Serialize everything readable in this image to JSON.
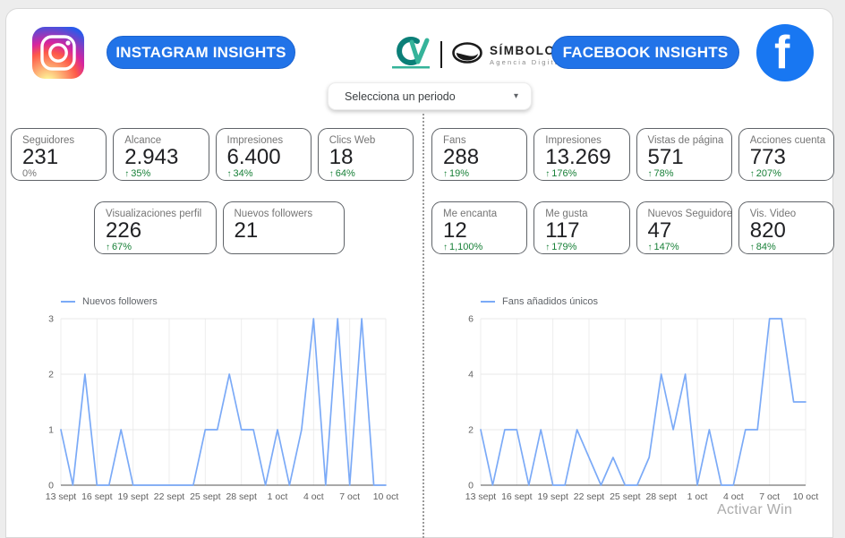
{
  "header": {
    "instagram_button": "INSTAGRAM INSIGHTS",
    "facebook_button": "FACEBOOK INSIGHTS",
    "simbolo_name": "SÍMBOLO",
    "simbolo_sub": "Agencia Digital"
  },
  "filter": {
    "label": "Selecciona un periodo"
  },
  "ui": {
    "up_arrow": "↑",
    "dropdown_caret": "▾"
  },
  "colors": {
    "accent_blue": "#2173e8",
    "facebook_blue": "#1877f2",
    "positive_green": "#188038",
    "chart_line": "#7baaf7"
  },
  "instagram": {
    "cards_row1": [
      {
        "label": "Seguidores",
        "value": "231",
        "delta": "0%",
        "positive": false
      },
      {
        "label": "Alcance",
        "value": "2.943",
        "delta": "35%",
        "positive": true
      },
      {
        "label": "Impresiones",
        "value": "6.400",
        "delta": "34%",
        "positive": true
      },
      {
        "label": "Clics Web",
        "value": "18",
        "delta": "64%",
        "positive": true
      }
    ],
    "cards_row2": [
      {
        "label": "Visualizaciones perfil",
        "value": "226",
        "delta": "67%",
        "positive": true
      },
      {
        "label": "Nuevos followers",
        "value": "21",
        "delta": "",
        "positive": false
      }
    ]
  },
  "facebook": {
    "cards_row1": [
      {
        "label": "Fans",
        "value": "288",
        "delta": "19%",
        "positive": true
      },
      {
        "label": "Impresiones",
        "value": "13.269",
        "delta": "176%",
        "positive": true
      },
      {
        "label": "Vistas de página",
        "value": "571",
        "delta": "78%",
        "positive": true
      },
      {
        "label": "Acciones cuenta",
        "value": "773",
        "delta": "207%",
        "positive": true
      }
    ],
    "cards_row2": [
      {
        "label": "Me encanta",
        "value": "12",
        "delta": "1,100%",
        "positive": true
      },
      {
        "label": "Me gusta",
        "value": "117",
        "delta": "179%",
        "positive": true
      },
      {
        "label": "Nuevos Seguidores",
        "value": "47",
        "delta": "147%",
        "positive": true
      },
      {
        "label": "Vis. Video",
        "value": "820",
        "delta": "84%",
        "positive": true
      }
    ]
  },
  "chart_data": [
    {
      "type": "line",
      "legend": "Nuevos followers",
      "x_tick_labels": [
        "13 sept",
        "16 sept",
        "19 sept",
        "22 sept",
        "25 sept",
        "28 sept",
        "1 oct",
        "4 oct",
        "7 oct",
        "10 oct"
      ],
      "tick_every_days": 3,
      "y_ticks": [
        0,
        1,
        2,
        3
      ],
      "ylim": [
        0,
        3
      ],
      "daily_values": [
        1,
        0,
        2,
        0,
        0,
        1,
        0,
        0,
        0,
        0,
        0,
        0,
        1,
        1,
        2,
        1,
        1,
        0,
        1,
        0,
        1,
        3,
        0,
        3,
        0,
        3,
        0,
        0
      ],
      "line_color": "#7baaf7",
      "grid": true,
      "legend_position": "top-left"
    },
    {
      "type": "line",
      "legend": "Fans añadidos únicos",
      "x_tick_labels": [
        "13 sept",
        "16 sept",
        "19 sept",
        "22 sept",
        "25 sept",
        "28 sept",
        "1 oct",
        "4 oct",
        "7 oct",
        "10 oct"
      ],
      "tick_every_days": 3,
      "y_ticks": [
        0,
        2,
        4,
        6
      ],
      "ylim": [
        0,
        6
      ],
      "daily_values": [
        2,
        0,
        2,
        2,
        0,
        2,
        0,
        0,
        2,
        1,
        0,
        1,
        0,
        0,
        1,
        4,
        2,
        4,
        0,
        2,
        0,
        0,
        2,
        2,
        6,
        6,
        3,
        3
      ],
      "line_color": "#7baaf7",
      "grid": true,
      "legend_position": "top-left"
    }
  ],
  "watermark": "Activar Win"
}
